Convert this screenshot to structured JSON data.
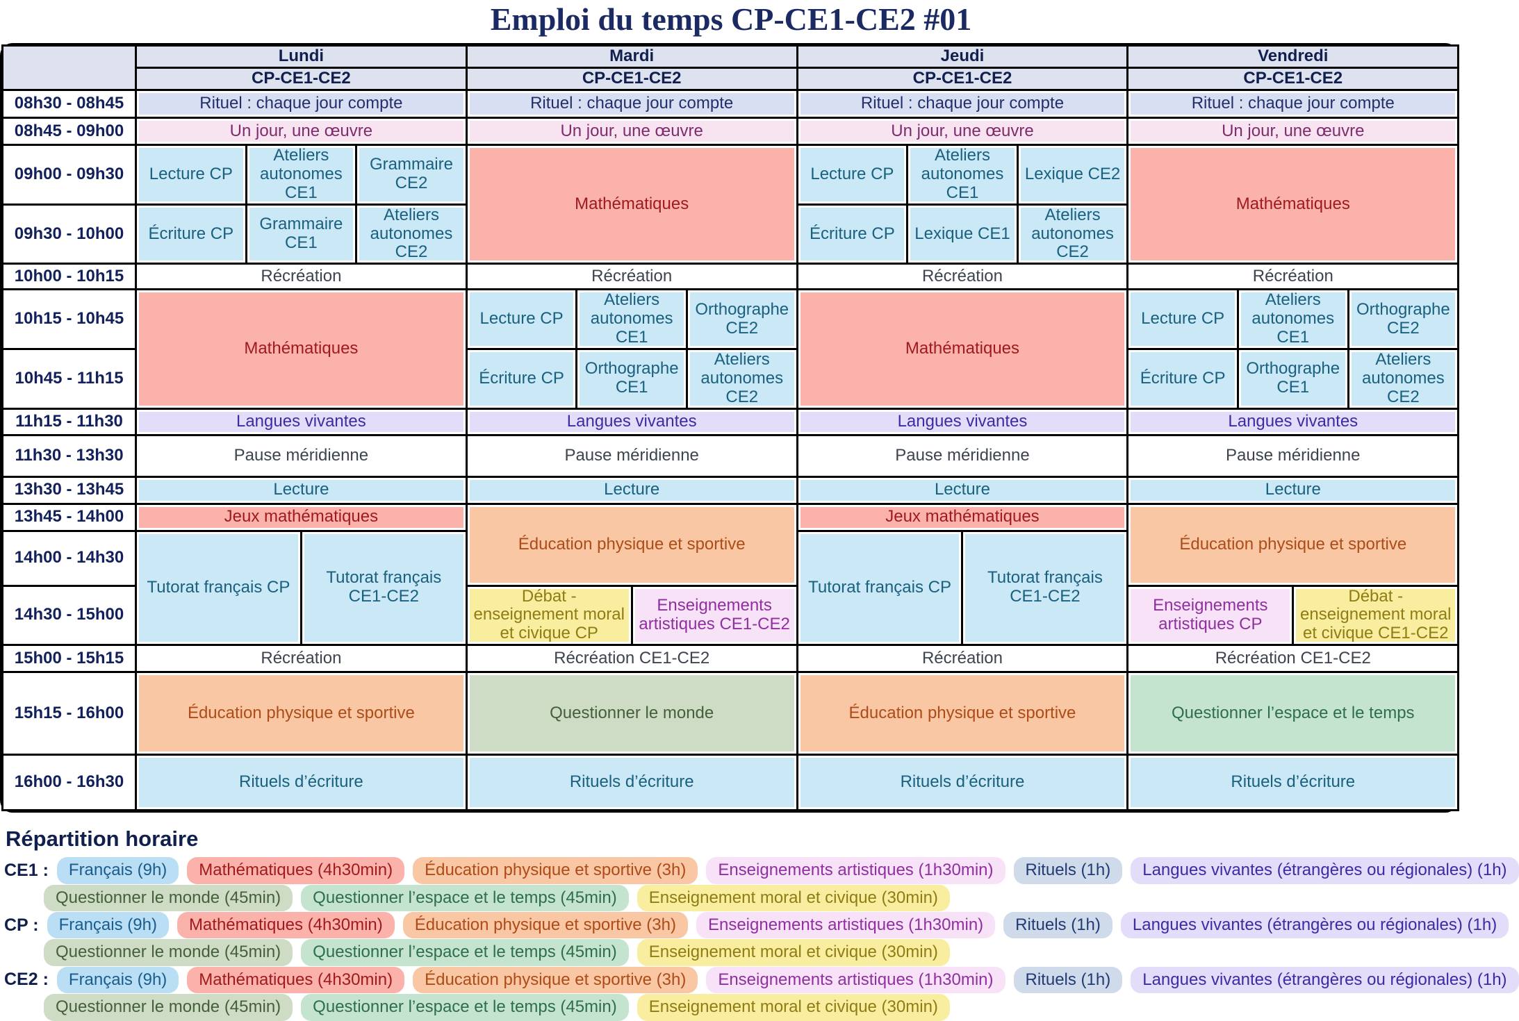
{
  "title": "Emploi du temps CP-CE1-CE2 #01",
  "colors": {
    "header": {
      "bg": "#dde2ee",
      "text": "#101f4e"
    },
    "bleu": {
      "bg": "#cbe8f6",
      "text": "#1a607f"
    },
    "francais": {
      "bg": "#badff4",
      "text": "#1a5c8e"
    },
    "maths": {
      "bg": "#fbb2ab",
      "text": "#9e1a1d"
    },
    "rituel": {
      "bg": "#d9dff2",
      "text": "#232f6b"
    },
    "oeuvre": {
      "bg": "#f8e3f0",
      "text": "#7e2c6d"
    },
    "langues": {
      "bg": "#e3ddfa",
      "text": "#3c2ba3"
    },
    "eps": {
      "bg": "#f9c7a4",
      "text": "#ad4c18"
    },
    "emc": {
      "bg": "#f9ee9f",
      "text": "#8e7c14"
    },
    "arts": {
      "bg": "#f8e2f8",
      "text": "#8f2fa0"
    },
    "monde": {
      "bg": "#cedcc5",
      "text": "#44603a"
    },
    "espace": {
      "bg": "#c5e4d0",
      "text": "#2e6e4b"
    },
    "blanc": {
      "bg": "#ffffff",
      "text": "#3d434f"
    },
    "rituels_pill": {
      "bg": "#cfdaea",
      "text": "#223c73"
    },
    "time_text": "#12215c",
    "title_text": "#1b2a63",
    "border": "#000000"
  },
  "timetable": {
    "days": [
      "Lundi",
      "Mardi",
      "Jeudi",
      "Vendredi"
    ],
    "group_header": "CP-CE1-CE2",
    "rows": [
      {
        "time": "08h30 - 08h45",
        "h": 40,
        "cells": [
          {
            "t": "Rituel : chaque jour compte",
            "s": 6,
            "c": "rituel"
          },
          {
            "t": "Rituel : chaque jour compte",
            "s": 6,
            "c": "rituel"
          },
          {
            "t": "Rituel : chaque jour compte",
            "s": 6,
            "c": "rituel"
          },
          {
            "t": "Rituel : chaque jour compte",
            "s": 6,
            "c": "rituel"
          }
        ]
      },
      {
        "time": "08h45 - 09h00",
        "h": 39,
        "cells": [
          {
            "t": "Un jour, une œuvre",
            "s": 6,
            "c": "oeuvre"
          },
          {
            "t": "Un jour, une œuvre",
            "s": 6,
            "c": "oeuvre"
          },
          {
            "t": "Un jour, une œuvre",
            "s": 6,
            "c": "oeuvre"
          },
          {
            "t": "Un jour, une œuvre",
            "s": 6,
            "c": "oeuvre"
          }
        ]
      },
      {
        "time": "09h00 - 09h30",
        "h": 79,
        "cells": [
          {
            "t": "Lecture CP",
            "s": 2,
            "c": "bleu"
          },
          {
            "t": "Ateliers autonomes CE1",
            "s": 2,
            "c": "bleu"
          },
          {
            "t": "Grammaire CE2",
            "s": 2,
            "c": "bleu"
          },
          {
            "t": "Mathématiques",
            "s": 6,
            "r": 2,
            "c": "maths"
          },
          {
            "t": "Lecture CP",
            "s": 2,
            "c": "bleu"
          },
          {
            "t": "Ateliers autonomes CE1",
            "s": 2,
            "c": "bleu"
          },
          {
            "t": "Lexique CE2",
            "s": 2,
            "c": "bleu"
          },
          {
            "t": "Mathématiques",
            "s": 6,
            "r": 2,
            "c": "maths"
          }
        ]
      },
      {
        "time": "09h30 - 10h00",
        "h": 79,
        "cells": [
          {
            "t": "Écriture CP",
            "s": 2,
            "c": "bleu"
          },
          {
            "t": "Grammaire CE1",
            "s": 2,
            "c": "bleu"
          },
          {
            "t": "Ateliers autonomes CE2",
            "s": 2,
            "c": "bleu"
          },
          {
            "t": "Écriture CP",
            "s": 2,
            "c": "bleu"
          },
          {
            "t": "Lexique CE1",
            "s": 2,
            "c": "bleu"
          },
          {
            "t": "Ateliers autonomes CE2",
            "s": 2,
            "c": "bleu"
          }
        ]
      },
      {
        "time": "10h00 - 10h15",
        "h": 37,
        "cells": [
          {
            "t": "Récréation",
            "s": 6,
            "c": "blanc"
          },
          {
            "t": "Récréation",
            "s": 6,
            "c": "blanc"
          },
          {
            "t": "Récréation",
            "s": 6,
            "c": "blanc"
          },
          {
            "t": "Récréation",
            "s": 6,
            "c": "blanc"
          }
        ]
      },
      {
        "time": "10h15 - 10h45",
        "h": 79,
        "cells": [
          {
            "t": "Mathématiques",
            "s": 6,
            "r": 2,
            "c": "maths"
          },
          {
            "t": "Lecture CP",
            "s": 2,
            "c": "bleu"
          },
          {
            "t": "Ateliers autonomes CE1",
            "s": 2,
            "c": "bleu"
          },
          {
            "t": "Orthographe CE2",
            "s": 2,
            "c": "bleu"
          },
          {
            "t": "Mathématiques",
            "s": 6,
            "r": 2,
            "c": "maths"
          },
          {
            "t": "Lecture CP",
            "s": 2,
            "c": "bleu"
          },
          {
            "t": "Ateliers autonomes CE1",
            "s": 2,
            "c": "bleu"
          },
          {
            "t": "Orthographe CE2",
            "s": 2,
            "c": "bleu"
          }
        ]
      },
      {
        "time": "10h45 - 11h15",
        "h": 79,
        "cells": [
          {
            "t": "Écriture CP",
            "s": 2,
            "c": "bleu"
          },
          {
            "t": "Orthographe CE1",
            "s": 2,
            "c": "bleu"
          },
          {
            "t": "Ateliers autonomes CE2",
            "s": 2,
            "c": "bleu"
          },
          {
            "t": "Écriture CP",
            "s": 2,
            "c": "bleu"
          },
          {
            "t": "Orthographe CE1",
            "s": 2,
            "c": "bleu"
          },
          {
            "t": "Ateliers autonomes CE2",
            "s": 2,
            "c": "bleu"
          }
        ]
      },
      {
        "time": "11h15 - 11h30",
        "h": 38,
        "cells": [
          {
            "t": "Langues vivantes",
            "s": 6,
            "c": "langues"
          },
          {
            "t": "Langues vivantes",
            "s": 6,
            "c": "langues"
          },
          {
            "t": "Langues vivantes",
            "s": 6,
            "c": "langues"
          },
          {
            "t": "Langues vivantes",
            "s": 6,
            "c": "langues"
          }
        ]
      },
      {
        "time": "11h30 - 13h30",
        "h": 60,
        "cells": [
          {
            "t": "Pause méridienne",
            "s": 6,
            "c": "blanc"
          },
          {
            "t": "Pause méridienne",
            "s": 6,
            "c": "blanc"
          },
          {
            "t": "Pause méridienne",
            "s": 6,
            "c": "blanc"
          },
          {
            "t": "Pause méridienne",
            "s": 6,
            "c": "blanc"
          }
        ]
      },
      {
        "time": "13h30 - 13h45",
        "h": 39,
        "cells": [
          {
            "t": "Lecture",
            "s": 6,
            "c": "bleu"
          },
          {
            "t": "Lecture",
            "s": 6,
            "c": "bleu"
          },
          {
            "t": "Lecture",
            "s": 6,
            "c": "bleu"
          },
          {
            "t": "Lecture",
            "s": 6,
            "c": "bleu"
          }
        ]
      },
      {
        "time": "13h45 - 14h00",
        "h": 39,
        "cells": [
          {
            "t": "Jeux mathématiques",
            "s": 6,
            "c": "maths"
          },
          {
            "t": "Éducation physique et sportive",
            "s": 6,
            "r": 2,
            "c": "eps"
          },
          {
            "t": "Jeux mathématiques",
            "s": 6,
            "c": "maths"
          },
          {
            "t": "Éducation physique et sportive",
            "s": 6,
            "r": 2,
            "c": "eps"
          }
        ]
      },
      {
        "time": "14h00 - 14h30",
        "h": 79,
        "cells": [
          {
            "t": "Tutorat français CP",
            "s": 3,
            "r": 2,
            "c": "bleu"
          },
          {
            "t": "Tutorat français CE1-CE2",
            "s": 3,
            "r": 2,
            "c": "bleu"
          },
          {
            "t": "Tutorat français CP",
            "s": 3,
            "r": 2,
            "c": "bleu"
          },
          {
            "t": "Tutorat français CE1-CE2",
            "s": 3,
            "r": 2,
            "c": "bleu"
          }
        ]
      },
      {
        "time": "14h30 - 15h00",
        "h": 78,
        "cells": [
          {
            "t": "Débat - enseignement moral et civique CP",
            "s": 3,
            "c": "emc"
          },
          {
            "t": "Enseignements artistiques CE1-CE2",
            "s": 3,
            "c": "arts"
          },
          {
            "t": "Enseignements artistiques CP",
            "s": 3,
            "c": "arts"
          },
          {
            "t": "Débat - enseignement moral et civique CE1-CE2",
            "s": 3,
            "c": "emc"
          }
        ]
      },
      {
        "time": "15h00 - 15h15",
        "h": 39,
        "cells": [
          {
            "t": "Récréation",
            "s": 6,
            "c": "blanc"
          },
          {
            "t": "Récréation CE1-CE2",
            "s": 6,
            "c": "blanc"
          },
          {
            "t": "Récréation",
            "s": 6,
            "c": "blanc"
          },
          {
            "t": "Récréation CE1-CE2",
            "s": 6,
            "c": "blanc"
          }
        ]
      },
      {
        "time": "15h15 - 16h00",
        "h": 119,
        "cells": [
          {
            "t": "Éducation physique et sportive",
            "s": 6,
            "c": "eps"
          },
          {
            "t": "Questionner le monde",
            "s": 6,
            "c": "monde"
          },
          {
            "t": "Éducation physique et sportive",
            "s": 6,
            "c": "eps"
          },
          {
            "t": "Questionner l’espace et le temps",
            "s": 6,
            "c": "espace"
          }
        ]
      },
      {
        "time": "16h00 - 16h30",
        "h": 80,
        "cells": [
          {
            "t": "Rituels d’écriture",
            "s": 6,
            "c": "bleu"
          },
          {
            "t": "Rituels d’écriture",
            "s": 6,
            "c": "bleu"
          },
          {
            "t": "Rituels d’écriture",
            "s": 6,
            "c": "bleu"
          },
          {
            "t": "Rituels d’écriture",
            "s": 6,
            "c": "bleu"
          }
        ]
      }
    ]
  },
  "legend": {
    "heading": "Répartition horaire",
    "groups": [
      {
        "label": "CE1 :",
        "line1": [
          {
            "t": "Français (9h)",
            "c": "francais"
          },
          {
            "t": "Mathématiques (4h30min)",
            "c": "maths"
          },
          {
            "t": "Éducation physique et sportive (3h)",
            "c": "eps"
          },
          {
            "t": "Enseignements artistiques (1h30min)",
            "c": "arts"
          },
          {
            "t": "Rituels (1h)",
            "c": "rituels_pill"
          },
          {
            "t": "Langues vivantes (étrangères ou régionales) (1h)",
            "c": "langues"
          }
        ],
        "line2": [
          {
            "t": "Questionner le monde (45min)",
            "c": "monde"
          },
          {
            "t": "Questionner l’espace et le temps (45min)",
            "c": "espace"
          },
          {
            "t": "Enseignement moral et civique (30min)",
            "c": "emc"
          }
        ]
      },
      {
        "label": "CP :",
        "line1": [
          {
            "t": "Français (9h)",
            "c": "francais"
          },
          {
            "t": "Mathématiques (4h30min)",
            "c": "maths"
          },
          {
            "t": "Éducation physique et sportive (3h)",
            "c": "eps"
          },
          {
            "t": "Enseignements artistiques (1h30min)",
            "c": "arts"
          },
          {
            "t": "Rituels (1h)",
            "c": "rituels_pill"
          },
          {
            "t": "Langues vivantes (étrangères ou régionales) (1h)",
            "c": "langues"
          }
        ],
        "line2": [
          {
            "t": "Questionner le monde (45min)",
            "c": "monde"
          },
          {
            "t": "Questionner l’espace et le temps (45min)",
            "c": "espace"
          },
          {
            "t": "Enseignement moral et civique (30min)",
            "c": "emc"
          }
        ]
      },
      {
        "label": "CE2 :",
        "line1": [
          {
            "t": "Français (9h)",
            "c": "francais"
          },
          {
            "t": "Mathématiques (4h30min)",
            "c": "maths"
          },
          {
            "t": "Éducation physique et sportive (3h)",
            "c": "eps"
          },
          {
            "t": "Enseignements artistiques (1h30min)",
            "c": "arts"
          },
          {
            "t": "Rituels (1h)",
            "c": "rituels_pill"
          },
          {
            "t": "Langues vivantes (étrangères ou régionales) (1h)",
            "c": "langues"
          }
        ],
        "line2": [
          {
            "t": "Questionner le monde (45min)",
            "c": "monde"
          },
          {
            "t": "Questionner l’espace et le temps (45min)",
            "c": "espace"
          },
          {
            "t": "Enseignement moral et civique (30min)",
            "c": "emc"
          }
        ]
      }
    ]
  }
}
